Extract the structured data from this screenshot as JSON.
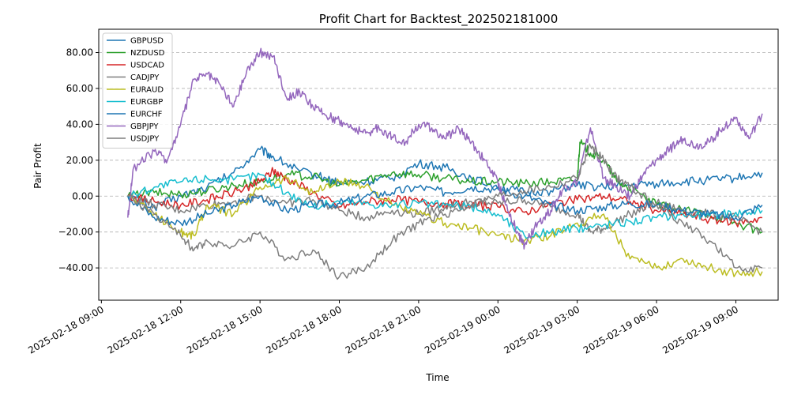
{
  "chart_data": {
    "type": "line",
    "title": "Profit Chart for Backtest_202502181000",
    "xlabel": "Time",
    "ylabel": "Pair Profit",
    "x_ticks": [
      {
        "value": 9,
        "label": "2025-02-18 09:00"
      },
      {
        "value": 12,
        "label": "2025-02-18 12:00"
      },
      {
        "value": 15,
        "label": "2025-02-18 15:00"
      },
      {
        "value": 18,
        "label": "2025-02-18 18:00"
      },
      {
        "value": 21,
        "label": "2025-02-18 21:00"
      },
      {
        "value": 24,
        "label": "2025-02-19 00:00"
      },
      {
        "value": 27,
        "label": "2025-02-19 03:00"
      },
      {
        "value": 30,
        "label": "2025-02-19 06:00"
      },
      {
        "value": 33,
        "label": "2025-02-19 09:00"
      }
    ],
    "y_ticks": [
      {
        "value": -40,
        "label": "−40.00"
      },
      {
        "value": -20,
        "label": "−20.00"
      },
      {
        "value": 0,
        "label": "0.00"
      },
      {
        "value": 20,
        "label": "20.00"
      },
      {
        "value": 40,
        "label": "40.00"
      },
      {
        "value": 60,
        "label": "60.00"
      },
      {
        "value": 80,
        "label": "80.00"
      }
    ],
    "xlim": [
      8.9,
      34.6
    ],
    "ylim": [
      -58,
      93
    ],
    "grid": "horizontal-dashed",
    "legend_position": "top-left",
    "series": [
      {
        "name": "GBPUSD",
        "color": "#1f77b4",
        "points": [
          [
            10.0,
            0
          ],
          [
            11.0,
            -6
          ],
          [
            12.0,
            0
          ],
          [
            13.0,
            5
          ],
          [
            14.0,
            13
          ],
          [
            15.0,
            26
          ],
          [
            15.5,
            22
          ],
          [
            16.5,
            14
          ],
          [
            17.5,
            10
          ],
          [
            18.0,
            7
          ],
          [
            19.0,
            8
          ],
          [
            20.0,
            10
          ],
          [
            21.0,
            18
          ],
          [
            22.0,
            16
          ],
          [
            23.0,
            10
          ],
          [
            24.0,
            5
          ],
          [
            25.0,
            2
          ],
          [
            26.0,
            3
          ],
          [
            27.0,
            6
          ],
          [
            28.0,
            5
          ],
          [
            29.0,
            6
          ],
          [
            30.0,
            7
          ],
          [
            31.0,
            8
          ],
          [
            32.0,
            9
          ],
          [
            33.0,
            10
          ],
          [
            34.0,
            13
          ]
        ]
      },
      {
        "name": "NZDUSD",
        "color": "#2ca02c",
        "points": [
          [
            10.0,
            0
          ],
          [
            11.0,
            2
          ],
          [
            12.0,
            1
          ],
          [
            13.0,
            3
          ],
          [
            14.0,
            6
          ],
          [
            15.0,
            8
          ],
          [
            16.0,
            12
          ],
          [
            17.0,
            11
          ],
          [
            18.0,
            6
          ],
          [
            19.0,
            9
          ],
          [
            20.0,
            13
          ],
          [
            21.0,
            12
          ],
          [
            22.0,
            10
          ],
          [
            23.0,
            8
          ],
          [
            24.0,
            8
          ],
          [
            25.0,
            7
          ],
          [
            26.0,
            8
          ],
          [
            27.0,
            9
          ],
          [
            27.1,
            30
          ],
          [
            27.5,
            24
          ],
          [
            28.0,
            20
          ],
          [
            28.5,
            8
          ],
          [
            29.0,
            4
          ],
          [
            30.0,
            -5
          ],
          [
            31.0,
            -8
          ],
          [
            32.0,
            -10
          ],
          [
            33.0,
            -15
          ],
          [
            34.0,
            -20
          ]
        ]
      },
      {
        "name": "USDCAD",
        "color": "#d62728",
        "points": [
          [
            10.0,
            0
          ],
          [
            11.0,
            -3
          ],
          [
            12.0,
            -5
          ],
          [
            13.0,
            -2
          ],
          [
            14.0,
            2
          ],
          [
            15.0,
            8
          ],
          [
            15.5,
            14
          ],
          [
            16.0,
            10
          ],
          [
            17.0,
            2
          ],
          [
            18.0,
            -6
          ],
          [
            19.0,
            -3
          ],
          [
            20.0,
            -2
          ],
          [
            21.0,
            -3
          ],
          [
            22.0,
            -4
          ],
          [
            23.0,
            -5
          ],
          [
            24.0,
            -6
          ],
          [
            25.0,
            -9
          ],
          [
            26.0,
            -4
          ],
          [
            27.0,
            -2
          ],
          [
            28.0,
            0
          ],
          [
            29.0,
            -3
          ],
          [
            30.0,
            -8
          ],
          [
            31.0,
            -10
          ],
          [
            32.0,
            -13
          ],
          [
            33.0,
            -15
          ],
          [
            34.0,
            -12
          ]
        ]
      },
      {
        "name": "CADJPY",
        "color": "#7f7f7f",
        "points": [
          [
            10.0,
            0
          ],
          [
            11.0,
            -5
          ],
          [
            12.0,
            -8
          ],
          [
            13.0,
            -5
          ],
          [
            14.0,
            -3
          ],
          [
            15.0,
            0
          ],
          [
            16.0,
            -4
          ],
          [
            17.0,
            -2
          ],
          [
            18.0,
            -8
          ],
          [
            19.0,
            -12
          ],
          [
            20.0,
            -8
          ],
          [
            21.0,
            -10
          ],
          [
            22.0,
            -6
          ],
          [
            23.0,
            -3
          ],
          [
            24.0,
            -4
          ],
          [
            25.0,
            -2
          ],
          [
            26.0,
            -6
          ],
          [
            27.0,
            -10
          ],
          [
            27.5,
            -20
          ],
          [
            28.0,
            -18
          ],
          [
            29.0,
            -10
          ],
          [
            30.0,
            -4
          ],
          [
            31.0,
            -8
          ],
          [
            32.0,
            -10
          ],
          [
            33.0,
            -12
          ],
          [
            34.0,
            -20
          ]
        ]
      },
      {
        "name": "EURAUD",
        "color": "#bcbd22",
        "points": [
          [
            10.0,
            0
          ],
          [
            11.0,
            -10
          ],
          [
            12.0,
            -20
          ],
          [
            12.5,
            -22
          ],
          [
            13.0,
            -5
          ],
          [
            14.0,
            -10
          ],
          [
            15.0,
            5
          ],
          [
            16.0,
            10
          ],
          [
            17.0,
            2
          ],
          [
            18.0,
            8
          ],
          [
            19.0,
            6
          ],
          [
            20.0,
            -5
          ],
          [
            21.0,
            -10
          ],
          [
            22.0,
            -15
          ],
          [
            23.0,
            -18
          ],
          [
            24.0,
            -22
          ],
          [
            25.0,
            -25
          ],
          [
            26.0,
            -22
          ],
          [
            27.0,
            -15
          ],
          [
            28.0,
            -10
          ],
          [
            29.0,
            -35
          ],
          [
            30.0,
            -40
          ],
          [
            31.0,
            -35
          ],
          [
            32.0,
            -40
          ],
          [
            33.0,
            -43
          ],
          [
            34.0,
            -42
          ]
        ]
      },
      {
        "name": "EURGBP",
        "color": "#17becf",
        "points": [
          [
            10.0,
            0
          ],
          [
            11.0,
            5
          ],
          [
            12.0,
            8
          ],
          [
            13.0,
            10
          ],
          [
            14.0,
            9
          ],
          [
            15.0,
            12
          ],
          [
            16.0,
            2
          ],
          [
            17.0,
            -6
          ],
          [
            18.0,
            -3
          ],
          [
            19.0,
            -4
          ],
          [
            20.0,
            -5
          ],
          [
            21.0,
            -4
          ],
          [
            22.0,
            -5
          ],
          [
            23.0,
            -6
          ],
          [
            24.0,
            -10
          ],
          [
            25.0,
            -22
          ],
          [
            26.0,
            -20
          ],
          [
            27.0,
            -18
          ],
          [
            28.0,
            -16
          ],
          [
            29.0,
            -14
          ],
          [
            30.0,
            -12
          ],
          [
            31.0,
            -10
          ],
          [
            32.0,
            -11
          ],
          [
            33.0,
            -9
          ],
          [
            34.0,
            -8
          ]
        ]
      },
      {
        "name": "EURCHF",
        "color": "#1f77b4",
        "points": [
          [
            10.0,
            0
          ],
          [
            11.0,
            -12
          ],
          [
            12.0,
            -15
          ],
          [
            13.0,
            -10
          ],
          [
            14.0,
            -5
          ],
          [
            15.0,
            0
          ],
          [
            16.0,
            -8
          ],
          [
            17.0,
            -5
          ],
          [
            18.0,
            -4
          ],
          [
            19.0,
            0
          ],
          [
            20.0,
            2
          ],
          [
            21.0,
            5
          ],
          [
            22.0,
            2
          ],
          [
            23.0,
            5
          ],
          [
            24.0,
            4
          ],
          [
            25.0,
            0
          ],
          [
            26.0,
            -5
          ],
          [
            27.0,
            -8
          ],
          [
            28.0,
            -6
          ],
          [
            29.0,
            -4
          ],
          [
            30.0,
            -5
          ],
          [
            31.0,
            -8
          ],
          [
            32.0,
            -10
          ],
          [
            33.0,
            -12
          ],
          [
            34.0,
            -5
          ]
        ]
      },
      {
        "name": "GBPJPY",
        "color": "#9467bd",
        "points": [
          [
            10.0,
            -12
          ],
          [
            10.2,
            15
          ],
          [
            11.0,
            25
          ],
          [
            11.5,
            20
          ],
          [
            12.0,
            40
          ],
          [
            12.5,
            65
          ],
          [
            13.0,
            68
          ],
          [
            13.5,
            62
          ],
          [
            14.0,
            50
          ],
          [
            14.5,
            70
          ],
          [
            15.0,
            80
          ],
          [
            15.5,
            78
          ],
          [
            16.0,
            55
          ],
          [
            16.5,
            58
          ],
          [
            17.0,
            50
          ],
          [
            17.5,
            45
          ],
          [
            18.0,
            42
          ],
          [
            18.5,
            38
          ],
          [
            19.0,
            35
          ],
          [
            19.5,
            38
          ],
          [
            20.0,
            33
          ],
          [
            20.5,
            30
          ],
          [
            21.0,
            40
          ],
          [
            21.5,
            38
          ],
          [
            22.0,
            32
          ],
          [
            22.5,
            38
          ],
          [
            23.0,
            30
          ],
          [
            23.5,
            20
          ],
          [
            24.0,
            8
          ],
          [
            24.3,
            -5
          ],
          [
            24.8,
            -22
          ],
          [
            25.0,
            -28
          ],
          [
            25.5,
            -15
          ],
          [
            26.0,
            -8
          ],
          [
            26.5,
            5
          ],
          [
            27.0,
            8
          ],
          [
            27.5,
            38
          ],
          [
            28.0,
            10
          ],
          [
            28.5,
            5
          ],
          [
            29.0,
            0
          ],
          [
            29.5,
            12
          ],
          [
            30.0,
            20
          ],
          [
            30.5,
            26
          ],
          [
            31.0,
            32
          ],
          [
            31.5,
            28
          ],
          [
            32.0,
            30
          ],
          [
            32.5,
            38
          ],
          [
            33.0,
            44
          ],
          [
            33.5,
            32
          ],
          [
            34.0,
            46
          ]
        ]
      },
      {
        "name": "USDJPY",
        "color": "#7f7f7f",
        "points": [
          [
            10.0,
            0
          ],
          [
            11.0,
            -10
          ],
          [
            12.0,
            -22
          ],
          [
            12.5,
            -30
          ],
          [
            13.0,
            -25
          ],
          [
            14.0,
            -28
          ],
          [
            15.0,
            -20
          ],
          [
            16.0,
            -35
          ],
          [
            17.0,
            -30
          ],
          [
            18.0,
            -45
          ],
          [
            19.0,
            -40
          ],
          [
            20.0,
            -25
          ],
          [
            21.0,
            -15
          ],
          [
            22.0,
            -10
          ],
          [
            23.0,
            -5
          ],
          [
            24.0,
            0
          ],
          [
            25.0,
            3
          ],
          [
            26.0,
            5
          ],
          [
            27.0,
            10
          ],
          [
            27.5,
            28
          ],
          [
            28.0,
            20
          ],
          [
            28.5,
            10
          ],
          [
            29.0,
            5
          ],
          [
            30.0,
            -5
          ],
          [
            31.0,
            -15
          ],
          [
            32.0,
            -25
          ],
          [
            33.0,
            -40
          ],
          [
            34.0,
            -40
          ]
        ]
      }
    ]
  }
}
